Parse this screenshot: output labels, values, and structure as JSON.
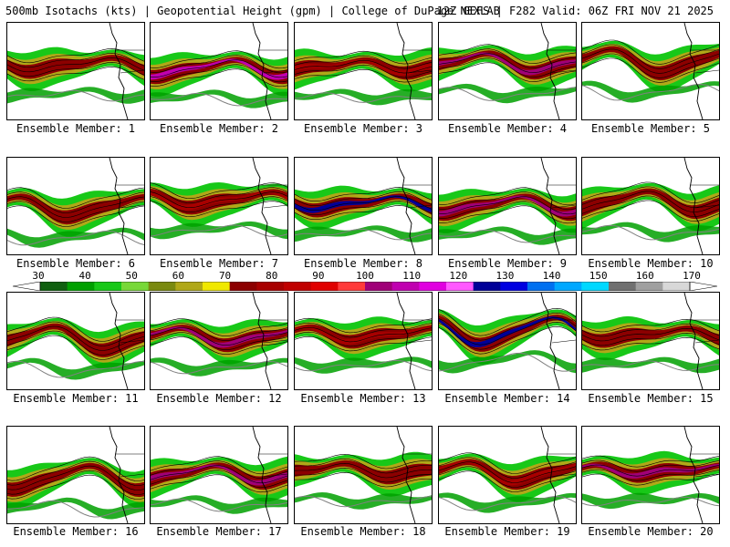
{
  "header": {
    "title_left": "500mb Isotachs (kts) | Geopotential Height (gpm) | College of DuPage NEXLAB",
    "title_right": "12Z GEFS | F282 Valid: 06Z FRI NOV 21 2025"
  },
  "colorbar": {
    "ticks": [
      "30",
      "40",
      "50",
      "60",
      "70",
      "80",
      "90",
      "100",
      "110",
      "120",
      "130",
      "140",
      "150",
      "160",
      "170"
    ],
    "colors": [
      "#106010",
      "#00a000",
      "#18c818",
      "#78d838",
      "#7a8a10",
      "#b0a818",
      "#f0e800",
      "#8c0000",
      "#a80000",
      "#c00000",
      "#e00000",
      "#ff3a3a",
      "#a00078",
      "#c000b0",
      "#e000e0",
      "#ff58ff",
      "#000098",
      "#0000e0",
      "#0070f0",
      "#00a8ff",
      "#00d8ff",
      "#707070",
      "#a0a0a0",
      "#d8d8d8"
    ]
  },
  "members": [
    {
      "label": "Ensemble Member: 1",
      "lat_shift": 0,
      "amp": 6,
      "core": "#8c0000"
    },
    {
      "label": "Ensemble Member: 2",
      "lat_shift": 4,
      "amp": 8,
      "core": "#c000b0"
    },
    {
      "label": "Ensemble Member: 3",
      "lat_shift": 2,
      "amp": 5,
      "core": "#a80000"
    },
    {
      "label": "Ensemble Member: 4",
      "lat_shift": -2,
      "amp": 9,
      "core": "#a00078"
    },
    {
      "label": "Ensemble Member: 5",
      "lat_shift": -4,
      "amp": 12,
      "core": "#8c0000"
    },
    {
      "label": "Ensemble Member: 6",
      "lat_shift": 8,
      "amp": 10,
      "core": "#8c0000"
    },
    {
      "label": "Ensemble Member: 7",
      "lat_shift": 0,
      "amp": 7,
      "core": "#a80000"
    },
    {
      "label": "Ensemble Member: 8",
      "lat_shift": 4,
      "amp": 6,
      "core": "#000098"
    },
    {
      "label": "Ensemble Member: 9",
      "lat_shift": 6,
      "amp": 8,
      "core": "#a00078"
    },
    {
      "label": "Ensemble Member: 10",
      "lat_shift": 2,
      "amp": 10,
      "core": "#8c0000"
    },
    {
      "label": "Ensemble Member: 11",
      "lat_shift": 4,
      "amp": 12,
      "core": "#8c0000"
    },
    {
      "label": "Ensemble Member: 12",
      "lat_shift": 2,
      "amp": 8,
      "core": "#a00078"
    },
    {
      "label": "Ensemble Member: 13",
      "lat_shift": 0,
      "amp": 6,
      "core": "#a80000"
    },
    {
      "label": "Ensemble Member: 14",
      "lat_shift": -4,
      "amp": 14,
      "core": "#000098"
    },
    {
      "label": "Ensemble Member: 15",
      "lat_shift": 0,
      "amp": 5,
      "core": "#8c0000"
    },
    {
      "label": "Ensemble Member: 16",
      "lat_shift": 10,
      "amp": 12,
      "core": "#8c0000"
    },
    {
      "label": "Ensemble Member: 17",
      "lat_shift": 6,
      "amp": 8,
      "core": "#a00078"
    },
    {
      "label": "Ensemble Member: 18",
      "lat_shift": 2,
      "amp": 6,
      "core": "#8c0000"
    },
    {
      "label": "Ensemble Member: 19",
      "lat_shift": 4,
      "amp": 10,
      "core": "#a80000"
    },
    {
      "label": "Ensemble Member: 20",
      "lat_shift": 2,
      "amp": 4,
      "core": "#a00078"
    }
  ]
}
